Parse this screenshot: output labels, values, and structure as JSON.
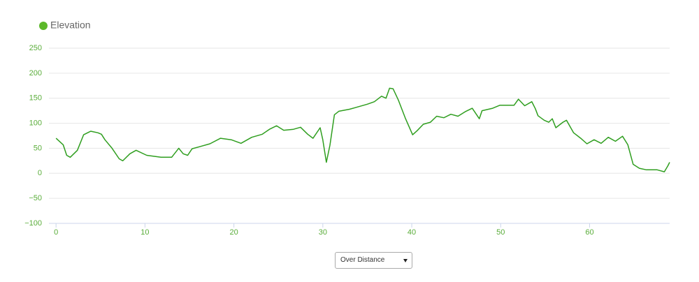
{
  "chart_data": {
    "type": "line",
    "legend": "top-left",
    "grid": true,
    "x": [
      0,
      0.8,
      1.2,
      1.6,
      2.4,
      3.1,
      3.9,
      4.7,
      5.1,
      5.5,
      6.3,
      7.1,
      7.5,
      8.3,
      9.0,
      10.2,
      11.8,
      13.0,
      13.8,
      14.3,
      14.8,
      15.3,
      16.1,
      17.3,
      18.5,
      19.7,
      20.8,
      22.0,
      23.2,
      24.0,
      24.8,
      25.6,
      26.7,
      27.5,
      28.3,
      28.9,
      29.7,
      30.0,
      30.4,
      30.8,
      31.3,
      31.8,
      33.0,
      34.2,
      35.0,
      35.8,
      36.6,
      37.1,
      37.5,
      37.9,
      38.5,
      39.3,
      40.1,
      40.6,
      41.3,
      42.1,
      42.8,
      43.6,
      44.4,
      45.2,
      46.0,
      46.8,
      47.6,
      47.9,
      49.1,
      49.9,
      50.7,
      51.5,
      52.0,
      52.7,
      53.5,
      53.9,
      54.2,
      54.9,
      55.4,
      55.8,
      56.2,
      57.0,
      57.4,
      58.2,
      59.0,
      59.7,
      60.5,
      61.3,
      62.1,
      62.9,
      63.7,
      64.3,
      64.9,
      65.6,
      66.4,
      67.6,
      68.4,
      68.8,
      69.0
    ],
    "series": [
      {
        "name": "Elevation",
        "color": "#2f9e1f",
        "legend_color": "#5cb82a",
        "values": [
          70,
          57,
          36,
          32,
          46,
          77,
          84,
          81,
          78,
          67,
          50,
          29,
          25,
          39,
          46,
          36,
          32,
          32,
          50,
          39,
          36,
          49,
          53,
          59,
          70,
          67,
          60,
          72,
          78,
          88,
          95,
          86,
          88,
          92,
          78,
          70,
          91,
          67,
          22,
          56,
          117,
          124,
          128,
          134,
          138,
          143,
          154,
          150,
          170,
          169,
          146,
          109,
          77,
          85,
          98,
          102,
          114,
          111,
          118,
          114,
          123,
          130,
          109,
          125,
          130,
          136,
          136,
          136,
          148,
          135,
          143,
          129,
          115,
          106,
          102,
          109,
          91,
          102,
          106,
          81,
          70,
          59,
          67,
          60,
          72,
          64,
          74,
          57,
          18,
          10,
          7,
          7,
          3,
          15,
          22
        ]
      }
    ],
    "xlim": [
      -0.8,
      69
    ],
    "xticks": [
      0,
      10,
      20,
      30,
      40,
      50,
      60
    ],
    "ylim": [
      -100,
      250
    ],
    "yticks": [
      {
        "value": -100,
        "label": "−100"
      },
      {
        "value": -50,
        "label": "−50"
      },
      0,
      50,
      100,
      150,
      200,
      250
    ]
  },
  "x_mode_selector": {
    "selected": "Over Distance"
  }
}
